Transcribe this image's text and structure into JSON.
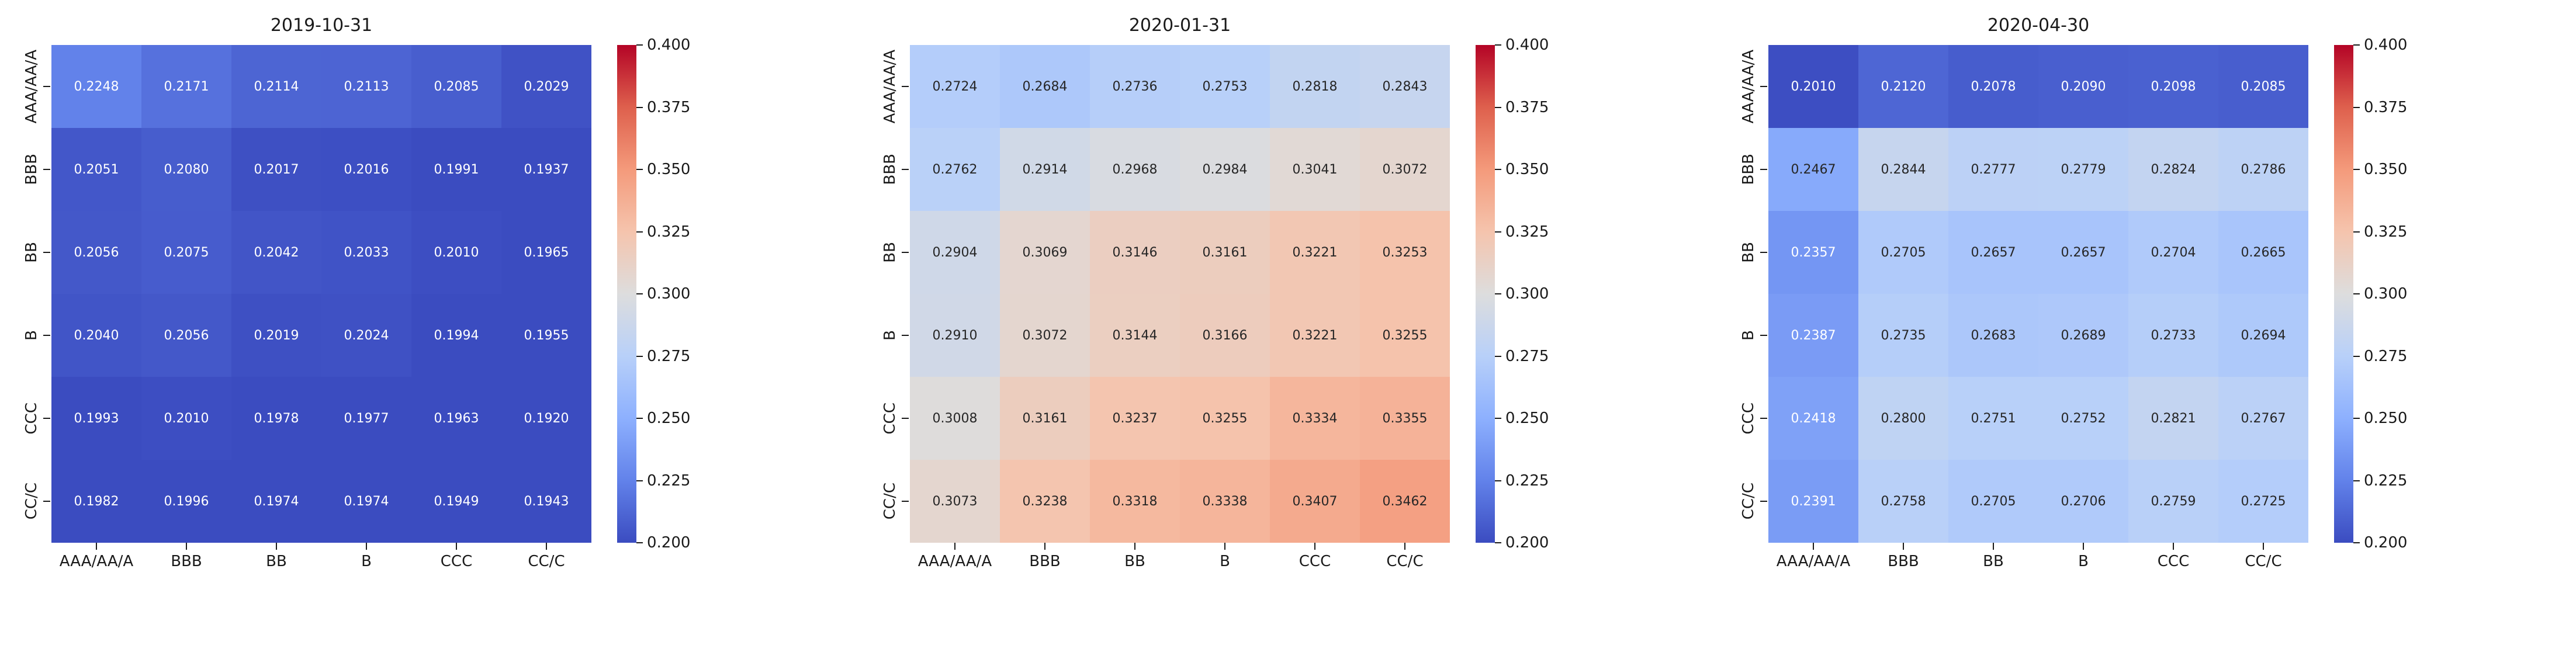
{
  "chart_data": [
    {
      "type": "heatmap",
      "title": "2019-10-31",
      "rows": [
        "AAA/AA/A",
        "BBB",
        "BB",
        "B",
        "CCC",
        "CC/C"
      ],
      "cols": [
        "AAA/AA/A",
        "BBB",
        "BB",
        "B",
        "CCC",
        "CC/C"
      ],
      "values": [
        [
          "0.2248",
          "0.2171",
          "0.2114",
          "0.2113",
          "0.2085",
          "0.2029"
        ],
        [
          "0.2051",
          "0.2080",
          "0.2017",
          "0.2016",
          "0.1991",
          "0.1937"
        ],
        [
          "0.2056",
          "0.2075",
          "0.2042",
          "0.2033",
          "0.2010",
          "0.1965"
        ],
        [
          "0.2040",
          "0.2056",
          "0.2019",
          "0.2024",
          "0.1994",
          "0.1955"
        ],
        [
          "0.1993",
          "0.2010",
          "0.1978",
          "0.1977",
          "0.1963",
          "0.1920"
        ],
        [
          "0.1982",
          "0.1996",
          "0.1974",
          "0.1974",
          "0.1949",
          "0.1943"
        ]
      ]
    },
    {
      "type": "heatmap",
      "title": "2020-01-31",
      "rows": [
        "AAA/AA/A",
        "BBB",
        "BB",
        "B",
        "CCC",
        "CC/C"
      ],
      "cols": [
        "AAA/AA/A",
        "BBB",
        "BB",
        "B",
        "CCC",
        "CC/C"
      ],
      "values": [
        [
          "0.2724",
          "0.2684",
          "0.2736",
          "0.2753",
          "0.2818",
          "0.2843"
        ],
        [
          "0.2762",
          "0.2914",
          "0.2968",
          "0.2984",
          "0.3041",
          "0.3072"
        ],
        [
          "0.2904",
          "0.3069",
          "0.3146",
          "0.3161",
          "0.3221",
          "0.3253"
        ],
        [
          "0.2910",
          "0.3072",
          "0.3144",
          "0.3166",
          "0.3221",
          "0.3255"
        ],
        [
          "0.3008",
          "0.3161",
          "0.3237",
          "0.3255",
          "0.3334",
          "0.3355"
        ],
        [
          "0.3073",
          "0.3238",
          "0.3318",
          "0.3338",
          "0.3407",
          "0.3462"
        ]
      ]
    },
    {
      "type": "heatmap",
      "title": "2020-04-30",
      "rows": [
        "AAA/AA/A",
        "BBB",
        "BB",
        "B",
        "CCC",
        "CC/C"
      ],
      "cols": [
        "AAA/AA/A",
        "BBB",
        "BB",
        "B",
        "CCC",
        "CC/C"
      ],
      "values": [
        [
          "0.2010",
          "0.2120",
          "0.2078",
          "0.2090",
          "0.2098",
          "0.2085"
        ],
        [
          "0.2467",
          "0.2844",
          "0.2777",
          "0.2779",
          "0.2824",
          "0.2786"
        ],
        [
          "0.2357",
          "0.2705",
          "0.2657",
          "0.2657",
          "0.2704",
          "0.2665"
        ],
        [
          "0.2387",
          "0.2735",
          "0.2683",
          "0.2689",
          "0.2733",
          "0.2694"
        ],
        [
          "0.2418",
          "0.2800",
          "0.2751",
          "0.2752",
          "0.2821",
          "0.2767"
        ],
        [
          "0.2391",
          "0.2758",
          "0.2705",
          "0.2706",
          "0.2759",
          "0.2725"
        ]
      ]
    }
  ],
  "colorbar": {
    "vmin": 0.2,
    "vmax": 0.4,
    "ticks": [
      "0.400",
      "0.375",
      "0.350",
      "0.325",
      "0.300",
      "0.275",
      "0.250",
      "0.225",
      "0.200"
    ]
  },
  "colors": {
    "colormap": "coolwarm",
    "coolwarm_anchors": [
      "#3B4CC0",
      "#6282EA",
      "#8DB0FE",
      "#B8D0F9",
      "#DDDDDD",
      "#F5C4AD",
      "#F49A7B",
      "#DE604D",
      "#B40426"
    ],
    "annot_dark": "#262626",
    "annot_light": "#FFFFFF",
    "axis_text": "#1A1A1A",
    "tick_mark": "#1A1A1A",
    "background": "#FFFFFF"
  }
}
